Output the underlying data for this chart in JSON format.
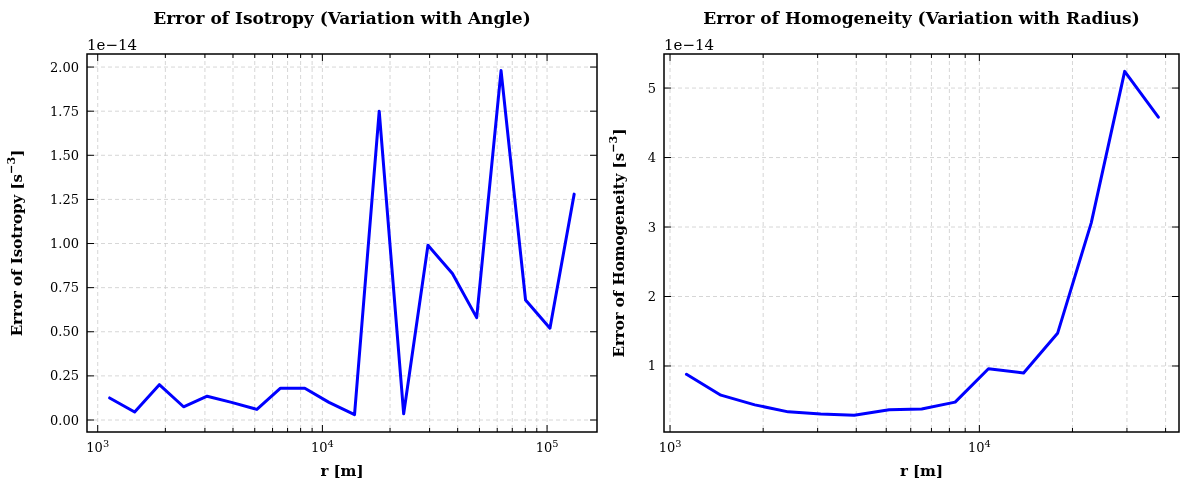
{
  "chart_data": [
    {
      "type": "line",
      "title": "Error of Isotropy (Variation with Angle)",
      "xlabel": "r [m]",
      "ylabel": "Error of Isotropy [s$^{−3}$]",
      "annotations": [
        "1e−14"
      ],
      "log": "x",
      "grid": true,
      "line_style": "solid",
      "marker": "none",
      "x": [
        1130,
        1460,
        1880,
        2410,
        3070,
        3940,
        5110,
        6510,
        8350,
        10700,
        13900,
        17900,
        23000,
        29500,
        37900,
        48600,
        62400,
        80200,
        103000,
        132000
      ],
      "series": [
        {
          "color": "#0000ff",
          "values": [
            0.125,
            0.045,
            0.2,
            0.075,
            0.135,
            0.1,
            0.06,
            0.18,
            0.18,
            0.1,
            0.03,
            1.75,
            0.035,
            0.99,
            0.83,
            0.58,
            1.98,
            0.68,
            0.52,
            1.28
          ]
        }
      ],
      "xlim": [
        896,
        166800
      ],
      "ylim": [
        -0.068,
        2.074
      ],
      "xticks": [
        {
          "value": 1000,
          "label": "10$^{3}$"
        },
        {
          "value": 2000,
          "label": null
        },
        {
          "value": 3000,
          "label": null
        },
        {
          "value": 4000,
          "label": null
        },
        {
          "value": 5000,
          "label": null
        },
        {
          "value": 6000,
          "label": null
        },
        {
          "value": 7000,
          "label": null
        },
        {
          "value": 8000,
          "label": null
        },
        {
          "value": 9000,
          "label": null
        },
        {
          "value": 10000,
          "label": "10$^{4}$"
        },
        {
          "value": 20000,
          "label": null
        },
        {
          "value": 30000,
          "label": null
        },
        {
          "value": 40000,
          "label": null
        },
        {
          "value": 50000,
          "label": null
        },
        {
          "value": 60000,
          "label": null
        },
        {
          "value": 70000,
          "label": null
        },
        {
          "value": 80000,
          "label": null
        },
        {
          "value": 90000,
          "label": null
        },
        {
          "value": 100000,
          "label": "10$^{5}$"
        }
      ],
      "yticks": [
        {
          "value": 0,
          "label": "0.00"
        },
        {
          "value": 0.25,
          "label": "0.25"
        },
        {
          "value": 0.5,
          "label": "0.50"
        },
        {
          "value": 0.75,
          "label": "0.75"
        },
        {
          "value": 1,
          "label": "1.00"
        },
        {
          "value": 1.25,
          "label": "1.25"
        },
        {
          "value": 1.5,
          "label": "1.50"
        },
        {
          "value": 1.75,
          "label": "1.75"
        },
        {
          "value": 2,
          "label": "2.00"
        }
      ]
    },
    {
      "type": "line",
      "title": "Error of Homogeneity (Variation with Radius)",
      "xlabel": "r [m]",
      "ylabel": "Error of Homogeneity [s$^{−3}$]",
      "annotations": [
        "1e−14"
      ],
      "log": "x",
      "grid": true,
      "line_style": "solid",
      "marker": "none",
      "x": [
        1130,
        1460,
        1880,
        2410,
        3070,
        3940,
        5110,
        6510,
        8350,
        10700,
        13900,
        17900,
        23000,
        29500,
        37900
      ],
      "series": [
        {
          "color": "#0000ff",
          "values": [
            0.88,
            0.58,
            0.44,
            0.34,
            0.31,
            0.29,
            0.37,
            0.38,
            0.48,
            0.96,
            0.9,
            1.47,
            3.06,
            5.24,
            4.58
          ]
        }
      ],
      "xlim": [
        956,
        44200
      ],
      "ylim": [
        0.05,
        5.49
      ],
      "xticks": [
        {
          "value": 1000,
          "label": "10$^{3}$"
        },
        {
          "value": 2000,
          "label": null
        },
        {
          "value": 3000,
          "label": null
        },
        {
          "value": 4000,
          "label": null
        },
        {
          "value": 5000,
          "label": null
        },
        {
          "value": 6000,
          "label": null
        },
        {
          "value": 7000,
          "label": null
        },
        {
          "value": 8000,
          "label": null
        },
        {
          "value": 9000,
          "label": null
        },
        {
          "value": 10000,
          "label": "10$^{4}$"
        },
        {
          "value": 20000,
          "label": null
        },
        {
          "value": 30000,
          "label": null
        },
        {
          "value": 40000,
          "label": null
        }
      ],
      "yticks": [
        1,
        2,
        3,
        4,
        5
      ]
    }
  ]
}
